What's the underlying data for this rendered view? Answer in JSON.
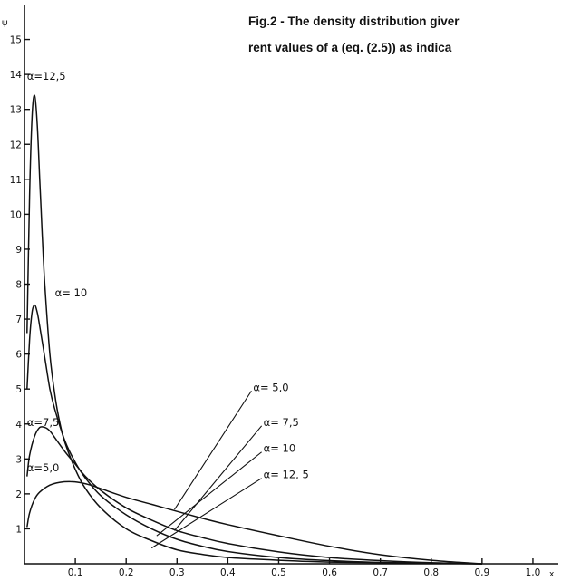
{
  "caption": {
    "line1": "Fig.2 - The density distribution giver",
    "line2": "rent values of a (eq. (2.5)) as indica"
  },
  "chart_data": {
    "type": "line",
    "xlabel": "x",
    "ylabel": "ψ",
    "xlim": [
      0,
      1.05
    ],
    "ylim": [
      0,
      16
    ],
    "x_ticks": [
      {
        "value": 0.1,
        "label": "0,1"
      },
      {
        "value": 0.2,
        "label": "0,2"
      },
      {
        "value": 0.3,
        "label": "0,3"
      },
      {
        "value": 0.4,
        "label": "0,4"
      },
      {
        "value": 0.5,
        "label": "0,5"
      },
      {
        "value": 0.6,
        "label": "0,6"
      },
      {
        "value": 0.7,
        "label": "0,7"
      },
      {
        "value": 0.8,
        "label": "0,8"
      },
      {
        "value": 0.9,
        "label": "0,9"
      },
      {
        "value": 1.0,
        "label": "1,0"
      }
    ],
    "y_ticks": [
      {
        "value": 1,
        "label": "1"
      },
      {
        "value": 2,
        "label": "2"
      },
      {
        "value": 3,
        "label": "3"
      },
      {
        "value": 4,
        "label": "4"
      },
      {
        "value": 5,
        "label": "5"
      },
      {
        "value": 6,
        "label": "6"
      },
      {
        "value": 7,
        "label": "7"
      },
      {
        "value": 8,
        "label": "8"
      },
      {
        "value": 9,
        "label": "9"
      },
      {
        "value": 10,
        "label": "10"
      },
      {
        "value": 11,
        "label": "11"
      },
      {
        "value": 12,
        "label": "12"
      },
      {
        "value": 13,
        "label": "13"
      },
      {
        "value": 14,
        "label": "14"
      },
      {
        "value": 15,
        "label": "15"
      }
    ],
    "series": [
      {
        "name": "α=12,5",
        "x": [
          0.005,
          0.01,
          0.015,
          0.02,
          0.025,
          0.03,
          0.035,
          0.04,
          0.05,
          0.06,
          0.07,
          0.08,
          0.1,
          0.12,
          0.15,
          0.2,
          0.25,
          0.3,
          0.35,
          0.4,
          0.5,
          0.6,
          0.7,
          0.8,
          0.9
        ],
        "y": [
          6.6,
          10.5,
          12.8,
          13.4,
          12.6,
          11.0,
          9.4,
          8.0,
          6.0,
          4.8,
          4.0,
          3.45,
          2.7,
          2.15,
          1.6,
          1.0,
          0.66,
          0.4,
          0.27,
          0.18,
          0.1,
          0.05,
          0.03,
          0.015,
          0.0
        ]
      },
      {
        "name": "α=10",
        "x": [
          0.005,
          0.01,
          0.015,
          0.02,
          0.025,
          0.03,
          0.04,
          0.05,
          0.06,
          0.08,
          0.1,
          0.12,
          0.15,
          0.2,
          0.25,
          0.3,
          0.35,
          0.4,
          0.5,
          0.6,
          0.7,
          0.8,
          0.9
        ],
        "y": [
          5.0,
          6.4,
          7.2,
          7.4,
          7.2,
          6.8,
          5.9,
          5.0,
          4.4,
          3.5,
          2.9,
          2.45,
          1.95,
          1.4,
          1.0,
          0.7,
          0.5,
          0.35,
          0.18,
          0.09,
          0.04,
          0.015,
          0.0
        ]
      },
      {
        "name": "α=7,5",
        "x": [
          0.005,
          0.01,
          0.02,
          0.03,
          0.04,
          0.05,
          0.06,
          0.08,
          0.1,
          0.12,
          0.15,
          0.2,
          0.25,
          0.3,
          0.35,
          0.4,
          0.5,
          0.6,
          0.7,
          0.8,
          0.9
        ],
        "y": [
          2.5,
          3.1,
          3.65,
          3.9,
          3.9,
          3.8,
          3.6,
          3.2,
          2.85,
          2.5,
          2.1,
          1.6,
          1.25,
          0.95,
          0.75,
          0.58,
          0.34,
          0.18,
          0.09,
          0.03,
          0.0
        ]
      },
      {
        "name": "α=5,0",
        "x": [
          0.005,
          0.01,
          0.02,
          0.03,
          0.05,
          0.07,
          0.09,
          0.11,
          0.13,
          0.15,
          0.2,
          0.25,
          0.3,
          0.35,
          0.4,
          0.5,
          0.6,
          0.7,
          0.8,
          0.9
        ],
        "y": [
          1.05,
          1.45,
          1.85,
          2.05,
          2.25,
          2.33,
          2.35,
          2.32,
          2.25,
          2.15,
          1.9,
          1.7,
          1.5,
          1.3,
          1.12,
          0.8,
          0.5,
          0.26,
          0.1,
          0.0
        ]
      }
    ],
    "annotations": [
      {
        "label": "α=12,5",
        "text_x": 0.005,
        "text_y": 13.95,
        "target_x": null,
        "target_y": null
      },
      {
        "label": "α= 10",
        "text_x": 0.06,
        "text_y": 7.75,
        "target_x": null,
        "target_y": null
      },
      {
        "label": "α=7,5",
        "text_x": 0.005,
        "text_y": 4.05,
        "target_x": null,
        "target_y": null
      },
      {
        "label": "α=5,0",
        "text_x": 0.005,
        "text_y": 2.75,
        "target_x": null,
        "target_y": null
      },
      {
        "label": "α= 5,0",
        "text_x": 0.45,
        "text_y": 5.05,
        "target_x": 0.295,
        "target_y": 1.55
      },
      {
        "label": "α= 7,5",
        "text_x": 0.47,
        "text_y": 4.05,
        "target_x": 0.295,
        "target_y": 0.95
      },
      {
        "label": "α= 10",
        "text_x": 0.47,
        "text_y": 3.3,
        "target_x": 0.26,
        "target_y": 0.8
      },
      {
        "label": "α= 12, 5",
        "text_x": 0.47,
        "text_y": 2.55,
        "target_x": 0.25,
        "target_y": 0.45
      }
    ],
    "grid": false,
    "legend": "none"
  }
}
